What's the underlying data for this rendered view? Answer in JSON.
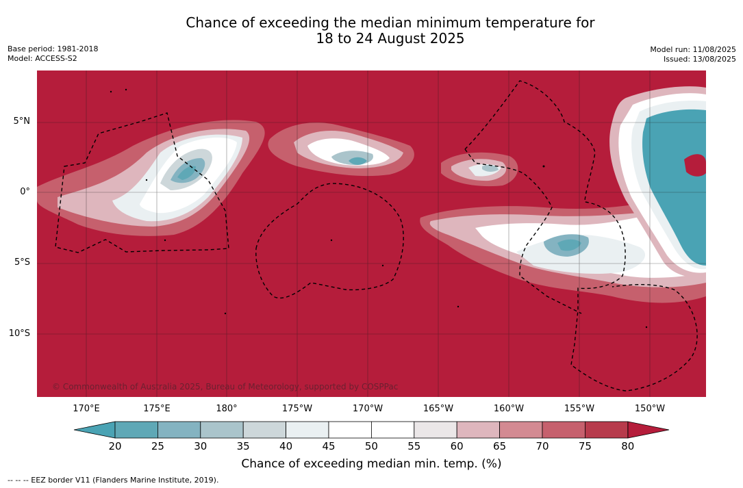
{
  "title_line1": "Chance of exceeding the median minimum temperature for",
  "title_line2": "18 to 24 August 2025",
  "base_period": "Base period: 1981-2018",
  "model": "Model: ACCESS-S2",
  "model_run": "Model run: 11/08/2025",
  "issued": "Issued: 13/08/2025",
  "copyright": "© Commonwealth of Australia 2025, Bureau of Meteorology, supported by COSPPac",
  "lat_labels": [
    "5°N",
    "0°",
    "5°S",
    "10°S"
  ],
  "lon_labels": [
    "170°E",
    "175°E",
    "180°",
    "175°W",
    "170°W",
    "165°W",
    "160°W",
    "155°W",
    "150°W"
  ],
  "colorbar": {
    "ticks": [
      "20",
      "25",
      "30",
      "35",
      "40",
      "45",
      "50",
      "55",
      "60",
      "65",
      "70",
      "75",
      "80"
    ],
    "colors": [
      "#5fa8b6",
      "#84b3c1",
      "#aac4cb",
      "#cdd7da",
      "#eaf0f2",
      "#ffffff",
      "#ffffff",
      "#ebe7e8",
      "#deb6bd",
      "#d38a92",
      "#c6606d",
      "#b73b4c"
    ],
    "low_color": "#4aa3b4",
    "high_color": "#b51d3b",
    "label": "Chance of exceeding median min. temp. (%)"
  },
  "legend_note": "--  --  -- EEZ border V11 (Flanders Marine Institute, 2019).",
  "background_color": "#b51d3b"
}
